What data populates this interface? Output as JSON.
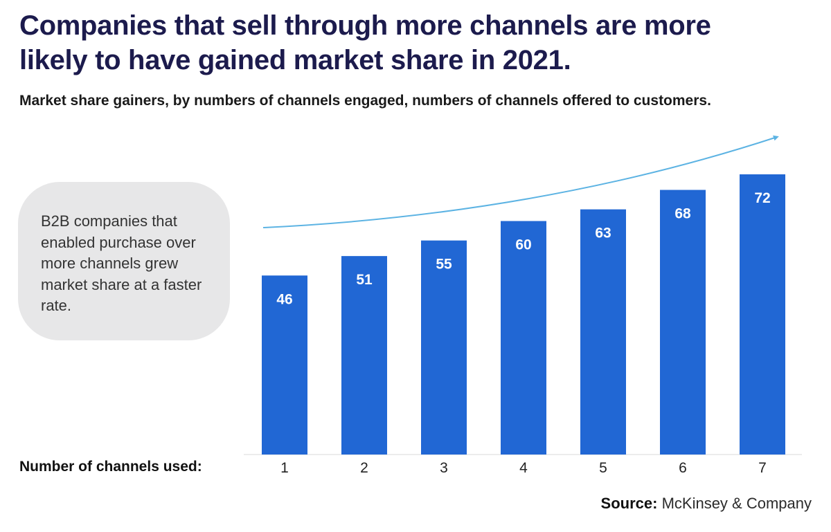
{
  "title": "Companies that sell through more channels are more likely to have gained market share in 2021.",
  "subtitle": "Market share gainers, by numbers of channels engaged, numbers of channels offered to customers.",
  "callout": "B2B companies that enabled purchase over more channels grew market share at a faster rate.",
  "x_axis_label": "Number of channels used:",
  "source": {
    "label": "Source:",
    "text": "McKinsey & Company"
  },
  "colors": {
    "bar": "#2167d4",
    "trend_arrow": "#5cb3e3",
    "title": "#1c1b4d",
    "callout_bg": "#e7e7e8"
  },
  "chart_data": {
    "type": "bar",
    "title": "Companies that sell through more channels are more likely to have gained market share in 2021.",
    "subtitle": "Market share gainers, by numbers of channels engaged, numbers of channels offered to customers.",
    "xlabel": "Number of channels used:",
    "ylabel": "",
    "categories": [
      "1",
      "2",
      "3",
      "4",
      "5",
      "6",
      "7"
    ],
    "values": [
      46,
      51,
      55,
      60,
      63,
      68,
      72
    ],
    "ylim": [
      0,
      72
    ],
    "grid": false,
    "data_labels": true,
    "annotation": "upward trend arrow"
  }
}
